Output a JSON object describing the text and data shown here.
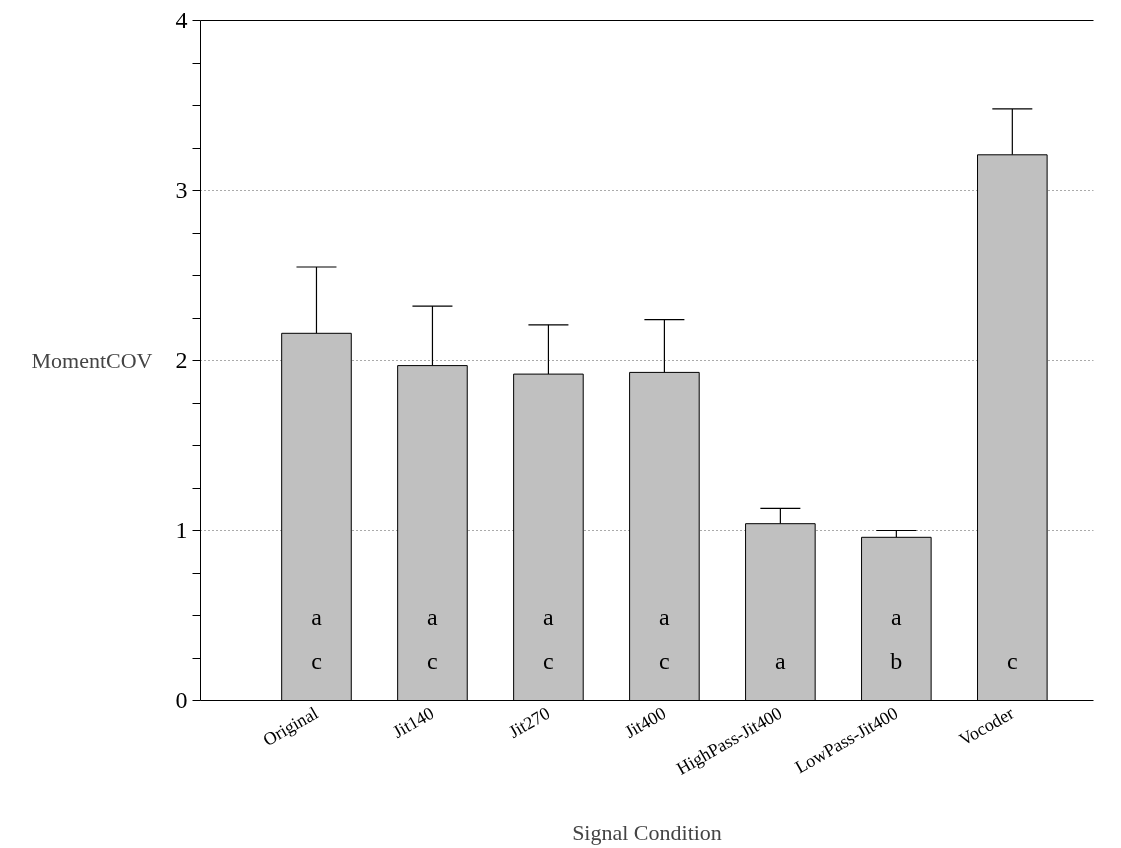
{
  "chart_data": {
    "type": "bar",
    "xlabel": "Signal Condition",
    "ylabel": "MomentCOV",
    "categories": [
      "Original",
      "Jit140",
      "Jit270",
      "Jit400",
      "HighPass-Jit400",
      "LowPass-Jit400",
      "Vocoder"
    ],
    "values": [
      2.16,
      1.97,
      1.92,
      1.93,
      1.04,
      0.96,
      3.21
    ],
    "errors": [
      [
        2.16,
        2.55
      ],
      [
        1.97,
        2.32
      ],
      [
        1.92,
        2.21
      ],
      [
        1.93,
        2.24
      ],
      [
        1.04,
        1.13
      ],
      [
        0.96,
        1.0
      ],
      [
        3.21,
        3.48
      ]
    ],
    "color": "#c0c0c0",
    "ylim": [
      0,
      4
    ],
    "yticks": [
      0,
      {
        "value": 0.25,
        "label": null
      },
      {
        "value": 0.5,
        "label": null
      },
      {
        "value": 0.75,
        "label": null
      },
      1,
      {
        "value": 1.25,
        "label": null
      },
      {
        "value": 1.5,
        "label": null
      },
      {
        "value": 1.75,
        "label": null
      },
      2,
      {
        "value": 2.25,
        "label": null
      },
      {
        "value": 2.5,
        "label": null
      },
      {
        "value": 2.75,
        "label": null
      },
      3,
      {
        "value": 3.25,
        "label": null
      },
      {
        "value": 3.5,
        "label": null
      },
      {
        "value": 3.75,
        "label": null
      },
      4
    ],
    "grid": "y",
    "annotations": [
      "a\nc",
      "a\nc",
      "a\nc",
      "a\nc",
      "a",
      "a\nb",
      "c"
    ]
  }
}
